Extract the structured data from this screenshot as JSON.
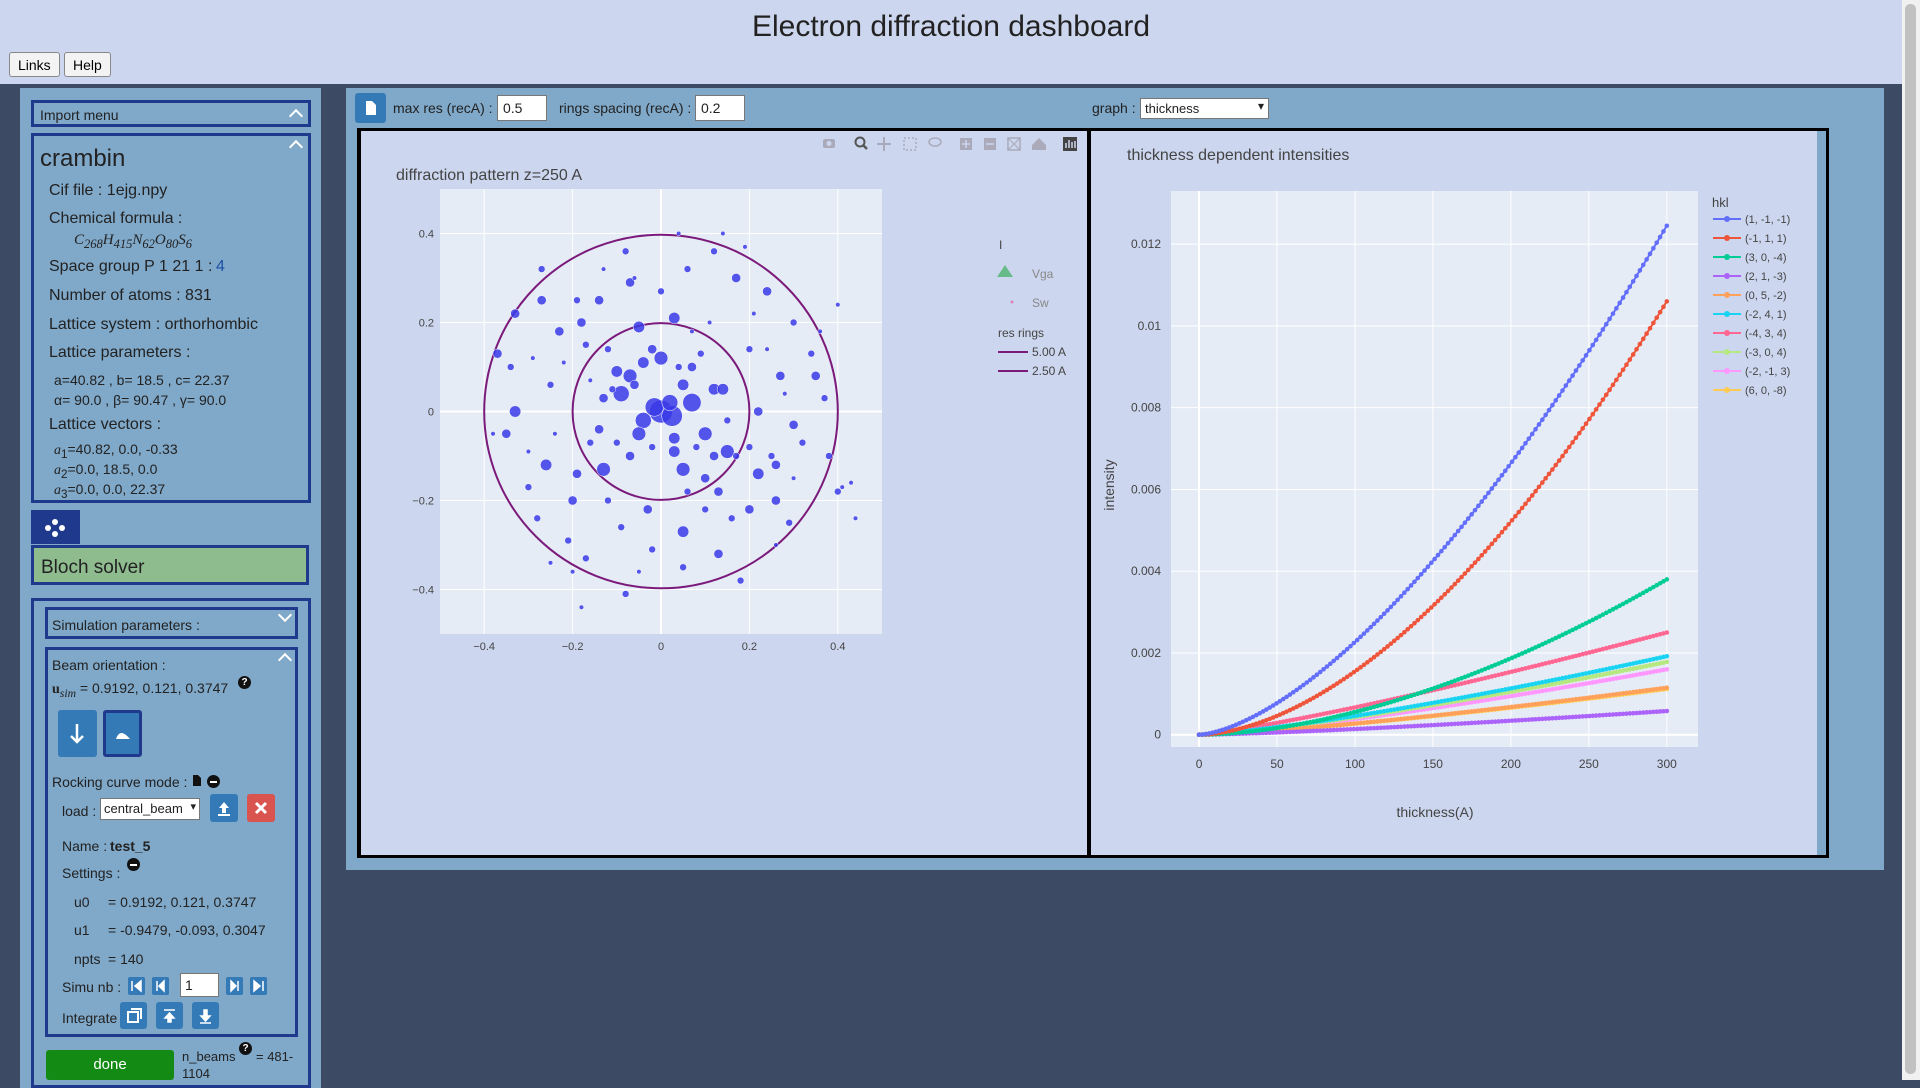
{
  "header": {
    "title": "Electron diffraction dashboard",
    "links_label": "Links",
    "help_label": "Help"
  },
  "sidebar": {
    "import_menu": "Import menu",
    "structure": {
      "name": "crambin",
      "cif_file": "Cif file : 1ejg.npy",
      "formula_label": "Chemical formula :",
      "formula": "C268H415N62O80S6",
      "space_group_label": "Space group P 1 21 1 :",
      "space_group_number": "4",
      "num_atoms": "Number of atoms : 831",
      "lattice_system": "Lattice system : orthorhombic",
      "lattice_params_label": "Lattice parameters :",
      "lattice_abc": "a=40.82 , b= 18.5 , c= 22.37",
      "lattice_angles": "α= 90.0 , β= 90.47 , γ= 90.0",
      "lattice_vectors_label": "Lattice vectors :",
      "a1": "=40.82, 0.0, -0.33",
      "a2": "=0.0, 18.5, 0.0",
      "a3": "=0.0, 0.0, 22.37"
    },
    "solver_title": "Bloch solver",
    "simulation_params": "Simulation parameters :",
    "beam_orientation_label": "Beam orientation :",
    "u_sim_value": "= 0.9192, 0.121, 0.3747",
    "rocking_curve_label": "Rocking curve mode :",
    "load_label": "load :",
    "load_value": "central_beam",
    "name_label": "Name :",
    "name_value": "test_5",
    "settings_label": "Settings :",
    "settings": [
      {
        "key": "u0",
        "value": "= 0.9192, 0.121, 0.3747"
      },
      {
        "key": "u1",
        "value": "= -0.9479, -0.093, 0.3047"
      },
      {
        "key": "npts",
        "value": "= 140"
      }
    ],
    "simu_nb_label": "Simu nb :",
    "simu_nb_value": "1",
    "integrate_label": "Integrate :",
    "done_label": "done",
    "n_beams_label": "n_beams",
    "n_beams_value": "= 481-",
    "n_beams_value2": "1104"
  },
  "toolbar": {
    "max_res_label": "max res (recA) :",
    "max_res_value": "0.5",
    "rings_spacing_label": "rings spacing (recA) :",
    "rings_spacing_value": "0.2",
    "graph_label": "graph :",
    "graph_value": "thickness"
  },
  "icons": {
    "download": "file-icon",
    "camera": "camera-icon",
    "zoom": "zoom-icon",
    "pan": "pan-icon",
    "box_select": "box-select-icon",
    "lasso": "lasso-icon",
    "zoom_in": "zoom-in-icon",
    "zoom_out": "zoom-out-icon",
    "autoscale": "autoscale-icon",
    "home": "home-icon",
    "plotly": "plotly-logo-icon"
  },
  "colors": {
    "accent": "#337ab7",
    "solver_green": "#8fbc8f",
    "done_green": "#138a13",
    "ring": "#7b1a7b",
    "spots": "#3a3ae8"
  },
  "chart_data": [
    {
      "type": "scatter",
      "title": "diffraction pattern z=250 A",
      "xlim": [
        -0.5,
        0.5
      ],
      "ylim": [
        0.5,
        -0.5
      ],
      "x_ticks": [
        "−0.4",
        "−0.2",
        "0",
        "0.2",
        "0.4"
      ],
      "y_ticks": [
        "−0.4",
        "−0.2",
        "0",
        "0.2",
        "0.4"
      ],
      "legend": {
        "title": "I",
        "items": [
          "Vga",
          "Sw"
        ],
        "rings_title": "res rings",
        "rings": [
          "5.00 A",
          "2.50 A"
        ]
      },
      "rings_radius": [
        0.2,
        0.4
      ],
      "spots": [
        [
          0,
          0,
          10
        ],
        [
          0.025,
          -0.01,
          9
        ],
        [
          -0.015,
          0.01,
          8
        ],
        [
          0.02,
          0.02,
          7
        ],
        [
          -0.04,
          -0.02,
          7
        ],
        [
          0.07,
          0.02,
          8
        ],
        [
          -0.09,
          0.04,
          7
        ],
        [
          -0.05,
          -0.05,
          6
        ],
        [
          0.1,
          -0.05,
          6
        ],
        [
          0.03,
          -0.06,
          5
        ],
        [
          0.15,
          -0.09,
          6
        ],
        [
          -0.13,
          -0.13,
          6
        ],
        [
          0.12,
          0.05,
          5
        ],
        [
          -0.07,
          0.08,
          6
        ],
        [
          0.0,
          0.12,
          6
        ],
        [
          -0.04,
          0.11,
          5
        ],
        [
          0.05,
          -0.13,
          6
        ],
        [
          0.03,
          -0.09,
          5
        ],
        [
          -0.1,
          0.09,
          5
        ],
        [
          -0.02,
          0.14,
          4
        ],
        [
          0.14,
          0.05,
          5
        ],
        [
          0.05,
          0.06,
          5
        ],
        [
          0.12,
          -0.1,
          4
        ],
        [
          -0.07,
          -0.1,
          4
        ],
        [
          -0.13,
          0.03,
          4
        ],
        [
          0.22,
          -0.14,
          5
        ],
        [
          0.13,
          -0.18,
          4
        ],
        [
          -0.19,
          -0.14,
          4
        ],
        [
          -0.05,
          0.19,
          5
        ],
        [
          0.03,
          0.21,
          5
        ],
        [
          -0.18,
          0.2,
          4
        ],
        [
          -0.26,
          -0.12,
          5
        ],
        [
          0.26,
          -0.12,
          4
        ],
        [
          -0.33,
          0.0,
          5
        ],
        [
          0.22,
          0.0,
          4
        ],
        [
          0.05,
          -0.27,
          5
        ],
        [
          0.13,
          -0.32,
          4
        ],
        [
          -0.03,
          -0.22,
          4
        ],
        [
          -0.2,
          -0.2,
          4
        ],
        [
          0.2,
          -0.22,
          4
        ],
        [
          -0.37,
          0.13,
          4
        ],
        [
          0.35,
          0.08,
          4
        ],
        [
          -0.35,
          -0.05,
          4
        ],
        [
          0.38,
          -0.1,
          3
        ],
        [
          -0.25,
          0.06,
          3
        ],
        [
          0.27,
          0.08,
          4
        ],
        [
          -0.14,
          -0.04,
          4
        ],
        [
          0.15,
          -0.02,
          3
        ],
        [
          -0.23,
          0.18,
          4
        ],
        [
          0.24,
          0.27,
          4
        ],
        [
          0.17,
          0.3,
          4
        ],
        [
          -0.07,
          0.29,
          4
        ],
        [
          -0.14,
          0.25,
          4
        ],
        [
          -0.27,
          0.25,
          4
        ],
        [
          -0.33,
          0.22,
          4
        ],
        [
          0.06,
          0.32,
          3
        ],
        [
          -0.19,
          0.25,
          3
        ],
        [
          0.26,
          -0.2,
          4
        ],
        [
          0.3,
          -0.03,
          4
        ],
        [
          0.37,
          0.03,
          3
        ],
        [
          -0.21,
          -0.29,
          3
        ],
        [
          0.16,
          -0.24,
          3
        ],
        [
          -0.02,
          -0.31,
          3
        ],
        [
          0.05,
          -0.35,
          3
        ],
        [
          -0.09,
          -0.26,
          3
        ],
        [
          -0.17,
          -0.33,
          3
        ],
        [
          -0.28,
          -0.24,
          3
        ],
        [
          0.29,
          -0.25,
          3
        ],
        [
          0.34,
          0.13,
          3
        ],
        [
          0.0,
          0.27,
          3
        ],
        [
          -0.34,
          0.1,
          3
        ],
        [
          0.4,
          -0.18,
          3
        ],
        [
          0.3,
          0.2,
          3
        ],
        [
          -0.08,
          0.36,
          3
        ],
        [
          0.12,
          0.36,
          3
        ],
        [
          -0.27,
          0.32,
          3
        ],
        [
          0.4,
          0.24,
          2
        ],
        [
          0.18,
          -0.38,
          3
        ],
        [
          -0.08,
          -0.41,
          3
        ],
        [
          -0.2,
          -0.36,
          2
        ],
        [
          -0.05,
          -0.36,
          2
        ],
        [
          0.1,
          -0.22,
          3
        ],
        [
          0.2,
          0.14,
          3
        ],
        [
          -0.3,
          -0.17,
          3
        ],
        [
          0.32,
          -0.07,
          3
        ],
        [
          -0.17,
          0.15,
          3
        ],
        [
          0.25,
          -0.1,
          3
        ],
        [
          -0.38,
          -0.05,
          2
        ],
        [
          0.44,
          -0.24,
          2
        ],
        [
          0.41,
          -0.17,
          2
        ],
        [
          -0.18,
          -0.44,
          2
        ],
        [
          -0.06,
          0.3,
          2
        ],
        [
          0.19,
          0.37,
          2
        ],
        [
          0.14,
          0.4,
          2
        ],
        [
          0.26,
          -0.3,
          2
        ],
        [
          -0.25,
          -0.34,
          2
        ],
        [
          -0.11,
          0.05,
          3
        ],
        [
          0.08,
          -0.08,
          3
        ],
        [
          -0.06,
          0.06,
          4
        ],
        [
          0.07,
          0.1,
          4
        ],
        [
          -0.1,
          -0.07,
          3
        ],
        [
          0.1,
          -0.15,
          4
        ],
        [
          -0.12,
          0.14,
          3
        ],
        [
          0.09,
          0.13,
          3
        ],
        [
          -0.02,
          -0.08,
          3
        ],
        [
          0.04,
          0.1,
          3
        ],
        [
          0.17,
          -0.1,
          3
        ],
        [
          -0.16,
          -0.07,
          3
        ],
        [
          0.06,
          -0.18,
          3
        ],
        [
          -0.12,
          -0.2,
          3
        ],
        [
          0.2,
          -0.08,
          3
        ],
        [
          0.3,
          -0.15,
          2
        ],
        [
          -0.3,
          -0.09,
          2
        ],
        [
          0.21,
          0.22,
          2
        ],
        [
          -0.22,
          0.11,
          2
        ],
        [
          0.11,
          0.2,
          2
        ],
        [
          -0.13,
          0.32,
          2
        ],
        [
          0.04,
          0.4,
          2
        ],
        [
          0.36,
          0.18,
          2
        ],
        [
          0.43,
          -0.16,
          2
        ],
        [
          -0.29,
          0.12,
          2
        ],
        [
          0.07,
          0.18,
          2
        ],
        [
          -0.16,
          0.07,
          2
        ],
        [
          0.24,
          0.14,
          2
        ],
        [
          -0.24,
          -0.05,
          2
        ],
        [
          0.28,
          0.04,
          2
        ]
      ]
    },
    {
      "type": "line",
      "title": "thickness dependent intensities",
      "xlabel": "thickness(A)",
      "ylabel": "intensity",
      "xlim": [
        -18,
        320
      ],
      "ylim": [
        -0.0003,
        0.0133
      ],
      "x_ticks": [
        0,
        50,
        100,
        150,
        200,
        250,
        300
      ],
      "y_ticks": [
        0,
        0.002,
        0.004,
        0.006,
        0.008,
        0.01,
        0.012
      ],
      "legend_title": "hkl",
      "series": [
        {
          "name": "(1, -1, -1)",
          "color": "#636efa",
          "final": 0.01245,
          "exp": 1.55
        },
        {
          "name": "(-1, 1, 1)",
          "color": "#ef553b",
          "final": 0.0106,
          "exp": 1.75
        },
        {
          "name": "(3, 0, -4)",
          "color": "#00cc96",
          "final": 0.0038,
          "exp": 1.75
        },
        {
          "name": "(2, 1, -3)",
          "color": "#ab63fa",
          "final": 0.00058,
          "exp": 1.3
        },
        {
          "name": "(0, 5, -2)",
          "color": "#ffa15a",
          "final": 0.00115,
          "exp": 1.3
        },
        {
          "name": "(-2, 4, 1)",
          "color": "#19d3f3",
          "final": 0.00192,
          "exp": 1.3
        },
        {
          "name": "(-4, 3, 4)",
          "color": "#ff6692",
          "final": 0.0025,
          "exp": 1.2
        },
        {
          "name": "(-3, 0, 4)",
          "color": "#b6e880",
          "final": 0.00178,
          "exp": 1.3
        },
        {
          "name": "(-2, -1, 3)",
          "color": "#ff97ff",
          "final": 0.0016,
          "exp": 1.3
        },
        {
          "name": "(6, 0, -8)",
          "color": "#fecb52",
          "final": 0.00112,
          "exp": 1.3
        }
      ]
    }
  ]
}
